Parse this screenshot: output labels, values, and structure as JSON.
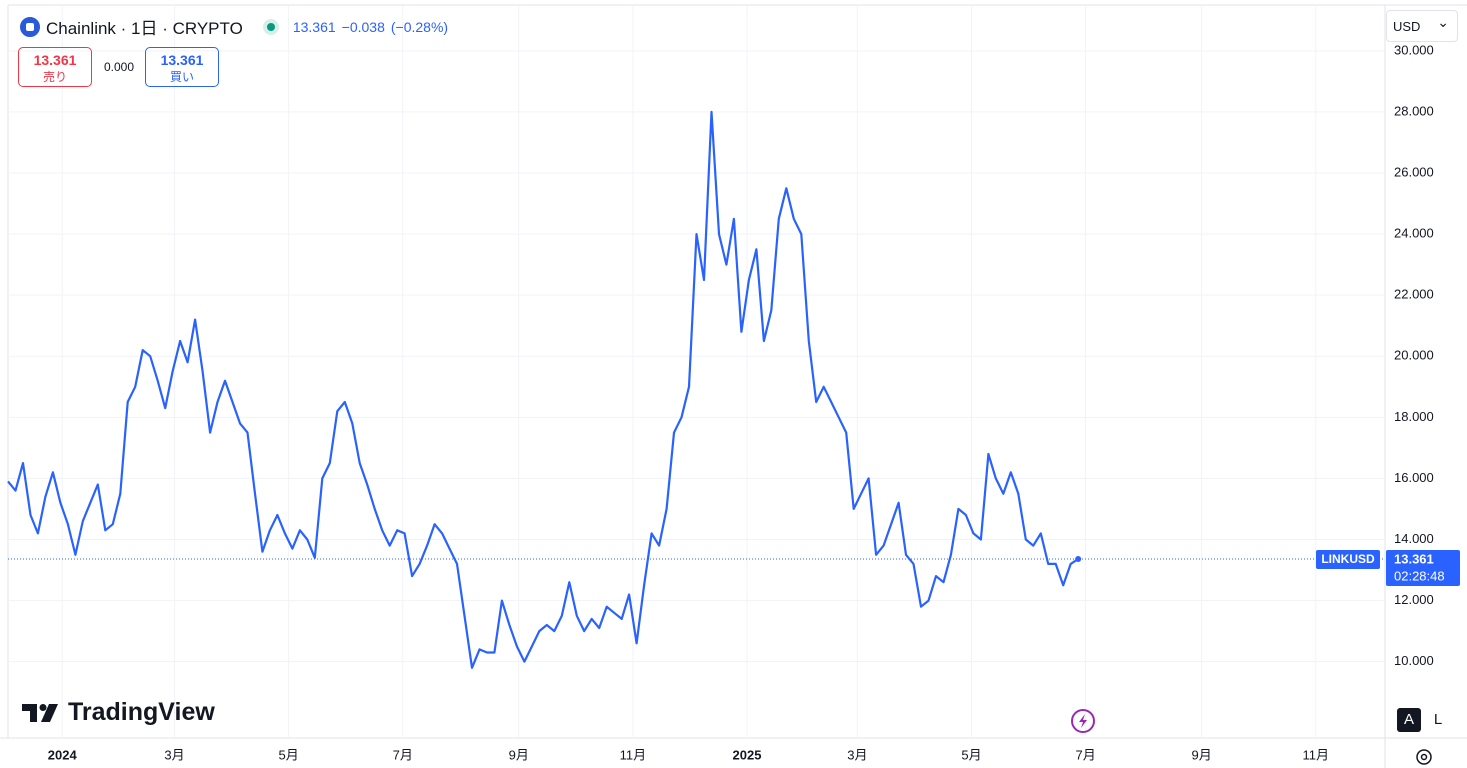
{
  "header": {
    "title": "Chainlink · 1日 · CRYPTO",
    "last": "13.361",
    "change": "−0.038",
    "change_pct": "(−0.28%)"
  },
  "trade": {
    "sell_price": "13.361",
    "sell_label": "売り",
    "spread": "0.000",
    "buy_price": "13.361",
    "buy_label": "買い"
  },
  "currency": "USD",
  "branding": "TradingView",
  "scale_buttons": [
    "A",
    "L"
  ],
  "chart_data": {
    "type": "line",
    "color": "#2962ff",
    "grid": true,
    "values": [
      15.9,
      15.6,
      16.5,
      14.8,
      14.2,
      15.4,
      16.2,
      15.2,
      14.5,
      13.5,
      14.6,
      15.2,
      15.8,
      14.3,
      14.5,
      15.5,
      18.5,
      19,
      20.2,
      20,
      19.2,
      18.3,
      19.5,
      20.5,
      19.8,
      21.2,
      19.5,
      17.5,
      18.5,
      19.2,
      18.5,
      17.8,
      17.5,
      15.5,
      13.6,
      14.3,
      14.8,
      14.2,
      13.7,
      14.3,
      14,
      13.4,
      16,
      16.5,
      18.2,
      18.5,
      17.8,
      16.5,
      15.8,
      15,
      14.3,
      13.8,
      14.3,
      14.2,
      12.8,
      13.2,
      13.8,
      14.5,
      14.2,
      13.7,
      13.2,
      11.5,
      9.8,
      10.4,
      10.3,
      10.3,
      12,
      11.2,
      10.5,
      10,
      10.5,
      11,
      11.2,
      11,
      11.5,
      12.6,
      11.5,
      11,
      11.4,
      11.1,
      11.8,
      11.6,
      11.4,
      12.2,
      10.6,
      12.5,
      14.2,
      13.8,
      15,
      17.5,
      18,
      19,
      24,
      22.5,
      28,
      24,
      23,
      24.5,
      20.8,
      22.5,
      23.5,
      20.5,
      21.5,
      24.5,
      25.5,
      24.5,
      24,
      20.5,
      18.5,
      19,
      18.5,
      18,
      17.5,
      15,
      15.5,
      16,
      13.5,
      13.8,
      14.5,
      15.2,
      13.5,
      13.2,
      11.8,
      12,
      12.8,
      12.6,
      13.5,
      15,
      14.8,
      14.2,
      14,
      16.8,
      16,
      15.5,
      16.2,
      15.5,
      14,
      13.8,
      14.2,
      13.2,
      13.2,
      12.5,
      13.2,
      13.361
    ],
    "xlim": [
      0,
      184
    ],
    "xticks": [
      {
        "value": 7.25,
        "label": "2024"
      },
      {
        "value": 22.25,
        "label": "3月"
      },
      {
        "value": 37.5,
        "label": "5月"
      },
      {
        "value": 52.75,
        "label": "7月"
      },
      {
        "value": 68.25,
        "label": "9月"
      },
      {
        "value": 83.5,
        "label": "11月"
      },
      {
        "value": 98.75,
        "label": "2025"
      },
      {
        "value": 113.5,
        "label": "3月"
      },
      {
        "value": 128.75,
        "label": "5月"
      },
      {
        "value": 144,
        "label": "7月"
      },
      {
        "value": 159.5,
        "label": "9月"
      },
      {
        "value": 174.75,
        "label": "11月"
      }
    ],
    "ylim": [
      7.5,
      31.5
    ],
    "yticks": [
      {
        "value": 10,
        "label": "10.000"
      },
      {
        "value": 12,
        "label": "12.000"
      },
      {
        "value": 14,
        "label": "14.000"
      },
      {
        "value": 16,
        "label": "16.000"
      },
      {
        "value": 18,
        "label": "18.000"
      },
      {
        "value": 20,
        "label": "20.000"
      },
      {
        "value": 22,
        "label": "22.000"
      },
      {
        "value": 24,
        "label": "24.000"
      },
      {
        "value": 26,
        "label": "26.000"
      },
      {
        "value": 28,
        "label": "28.000"
      },
      {
        "value": 30,
        "label": "30.000"
      }
    ],
    "price_label": {
      "symbol": "LINKUSD",
      "price": "13.361",
      "countdown": "02:28:48"
    }
  }
}
